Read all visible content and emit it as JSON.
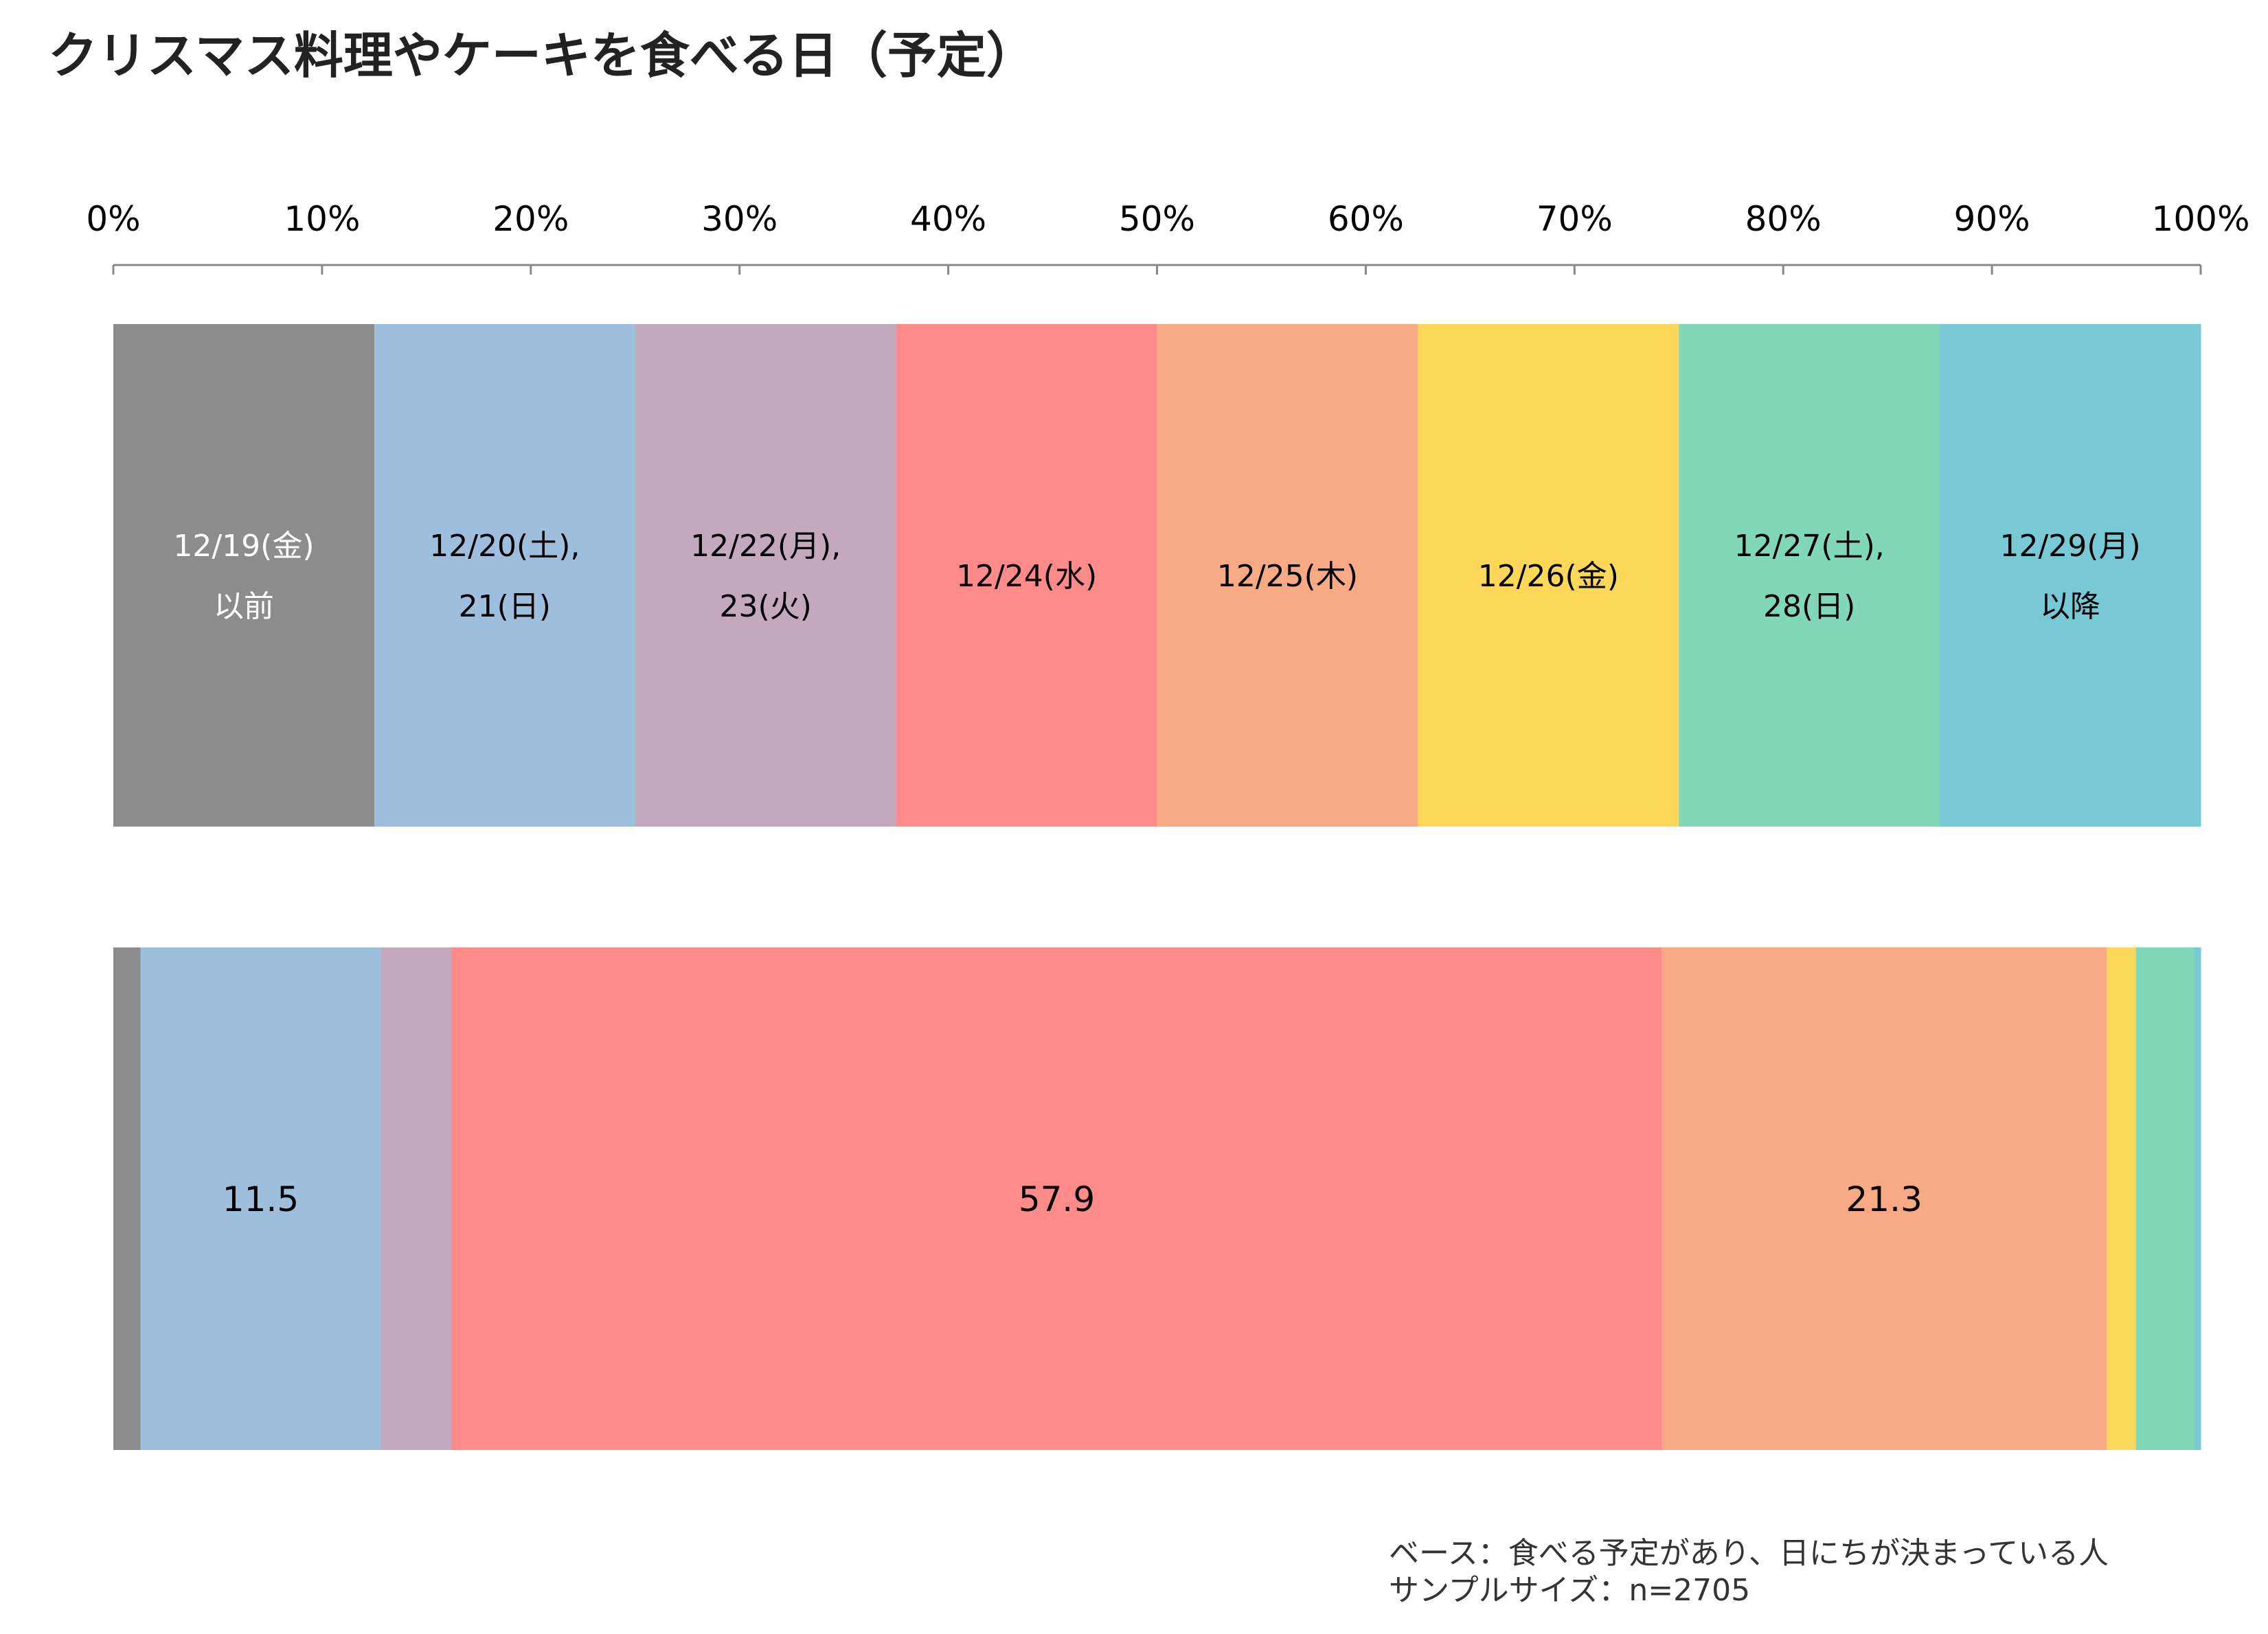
{
  "chart_data": {
    "type": "bar",
    "orientation": "horizontal-stacked-100",
    "title": "クリスマス料理やケーキを食べる日（予定）",
    "xlim": [
      0,
      100
    ],
    "x_ticks": [
      "0%",
      "10%",
      "20%",
      "30%",
      "40%",
      "50%",
      "60%",
      "70%",
      "80%",
      "90%",
      "100%"
    ],
    "legend_row": [
      {
        "lines": [
          "12/19(金)",
          "以前"
        ],
        "color": "#8c8c8c",
        "text_color": "#ffffff"
      },
      {
        "lines": [
          "12/20(土),",
          "21(日)"
        ],
        "color": "#9dbedc",
        "text_color": "#000000"
      },
      {
        "lines": [
          "12/22(月),",
          "23(火)"
        ],
        "color": "#c4a8bc",
        "text_color": "#000000"
      },
      {
        "lines": [
          "12/24(水)"
        ],
        "color": "#ff8a8a",
        "text_color": "#000000"
      },
      {
        "lines": [
          "12/25(木)"
        ],
        "color": "#f8aa85",
        "text_color": "#000000"
      },
      {
        "lines": [
          "12/26(金)"
        ],
        "color": "#fdd758",
        "text_color": "#000000"
      },
      {
        "lines": [
          "12/27(土),",
          "28(日)"
        ],
        "color": "#80d8b8",
        "text_color": "#000000"
      },
      {
        "lines": [
          "12/29(月)",
          "以降"
        ],
        "color": "#78c9d6",
        "text_color": "#000000"
      }
    ],
    "series": [
      {
        "category": "12/19(金)以前",
        "value": 1.3,
        "label": ""
      },
      {
        "category": "12/20(土),21(日)",
        "value": 11.5,
        "label": "11.5"
      },
      {
        "category": "12/22(月),23(火)",
        "value": 3.4,
        "label": ""
      },
      {
        "category": "12/24(水)",
        "value": 57.9,
        "label": "57.9"
      },
      {
        "category": "12/25(木)",
        "value": 21.3,
        "label": "21.3"
      },
      {
        "category": "12/26(金)",
        "value": 1.4,
        "label": ""
      },
      {
        "category": "12/27(土),28(日)",
        "value": 2.8,
        "label": ""
      },
      {
        "category": "12/29(月)以降",
        "value": 0.3,
        "label": ""
      }
    ]
  },
  "footnote": {
    "base": "ベース：食べる予定があり、日にちが決まっている人",
    "sample": "サンプルサイズ：n=2705"
  }
}
